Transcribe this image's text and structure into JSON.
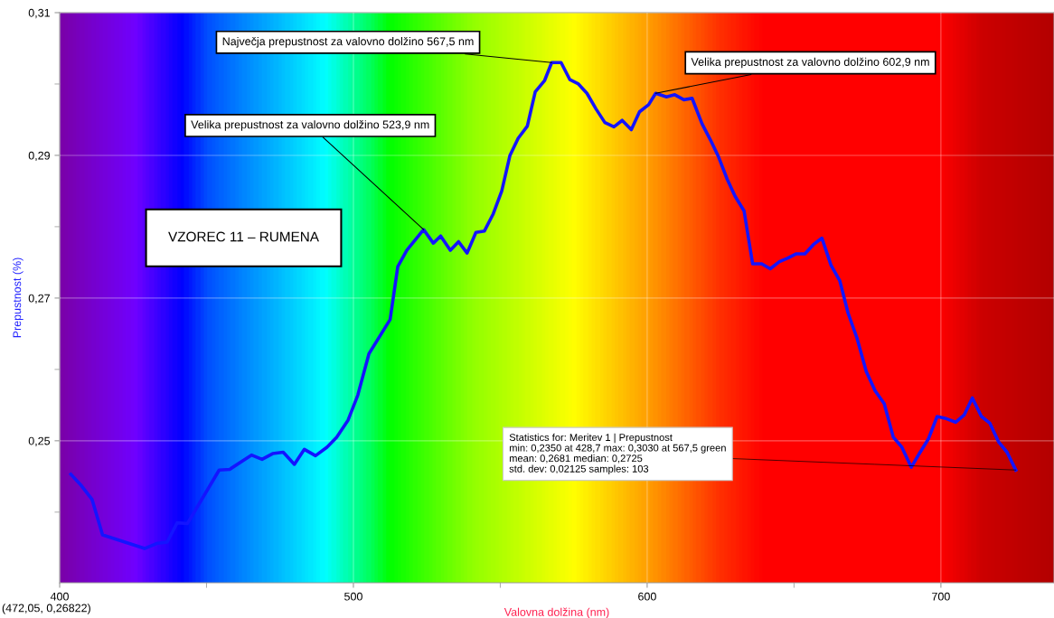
{
  "chart_data": {
    "type": "line",
    "xlabel": "Valovna dolžina (nm)",
    "ylabel": "Prepustnost (%)",
    "x": [
      403.8,
      407.4,
      411.0,
      414.6,
      428.9,
      433.0,
      436.6,
      440.0,
      443.5,
      454.3,
      457.9,
      465.3,
      468.9,
      472.5,
      476.1,
      479.9,
      483.3,
      487.1,
      491.0,
      494.3,
      498.2,
      501.5,
      505.3,
      512.5,
      515.1,
      518.2,
      523.9,
      527.2,
      529.7,
      533.0,
      535.8,
      538.7,
      541.7,
      544.6,
      547.6,
      550.5,
      553.3,
      556.1,
      559.2,
      561.9,
      565.1,
      567.5,
      570.7,
      573.7,
      576.6,
      579.5,
      582.6,
      585.6,
      588.7,
      591.5,
      594.6,
      597.4,
      600.5,
      602.9,
      606.6,
      609.4,
      612.5,
      615.3,
      618.7,
      621.5,
      624.3,
      627.2,
      629.9,
      633.0,
      635.9,
      639.0,
      641.9,
      645.0,
      647.9,
      650.8,
      653.7,
      656.6,
      659.5,
      662.6,
      665.6,
      668.4,
      671.5,
      674.6,
      677.6,
      680.7,
      683.8,
      686.7,
      689.9,
      692.8,
      695.8,
      698.7,
      701.8,
      705.0,
      707.9,
      710.7,
      713.8,
      716.6,
      719.7,
      722.5,
      725.5
    ],
    "series": [
      {
        "color": "#1414ff",
        "values": [
          0.2453,
          0.2437,
          0.2418,
          0.2368,
          0.2349,
          0.2356,
          0.2358,
          0.2385,
          0.2384,
          0.2459,
          0.246,
          0.248,
          0.2474,
          0.2482,
          0.2484,
          0.2467,
          0.2488,
          0.2479,
          0.2491,
          0.2505,
          0.2529,
          0.2564,
          0.2622,
          0.267,
          0.2744,
          0.2767,
          0.2796,
          0.2777,
          0.2787,
          0.2767,
          0.2779,
          0.2763,
          0.2792,
          0.2794,
          0.2818,
          0.285,
          0.29,
          0.2924,
          0.2941,
          0.2989,
          0.3005,
          0.303,
          0.303,
          0.3006,
          0.3,
          0.2987,
          0.2965,
          0.2946,
          0.294,
          0.2949,
          0.2936,
          0.2961,
          0.2971,
          0.2987,
          0.2982,
          0.2985,
          0.2978,
          0.298,
          0.2944,
          0.2922,
          0.2898,
          0.2867,
          0.2843,
          0.2822,
          0.2748,
          0.2748,
          0.2741,
          0.2751,
          0.2756,
          0.2762,
          0.2762,
          0.2775,
          0.2784,
          0.2746,
          0.2724,
          0.2679,
          0.2643,
          0.2597,
          0.257,
          0.2552,
          0.2505,
          0.2491,
          0.2463,
          0.2483,
          0.2503,
          0.2534,
          0.2531,
          0.2526,
          0.2536,
          0.256,
          0.2534,
          0.2525,
          0.2498,
          0.2484,
          0.2459
        ]
      }
    ],
    "xlim": [
      400,
      738.5
    ],
    "ylim": [
      0.2301,
      0.31
    ],
    "xticks": [
      400,
      {
        "value": 450,
        "label": null
      },
      500,
      {
        "value": 550,
        "label": null
      },
      600,
      {
        "value": 650,
        "label": null
      },
      700
    ],
    "yticks": [
      {
        "value": 0.24,
        "label": null
      },
      {
        "value": 0.25,
        "label": "0,25"
      },
      {
        "value": 0.26,
        "label": null
      },
      {
        "value": 0.27,
        "label": "0,27"
      },
      {
        "value": 0.28,
        "label": null
      },
      {
        "value": 0.29,
        "label": "0,29"
      },
      {
        "value": 0.3,
        "label": null
      },
      {
        "value": 0.31,
        "label": "0,31"
      }
    ],
    "grid": true,
    "marker": "none",
    "line_style": "solid",
    "annotations": [
      {
        "text": "Največja prepustnost za valovno dolžino 567,5 nm",
        "x": 567.5,
        "y": 0.303
      },
      {
        "text": "Velika prepustnost za valovno dolžino 523,9 nm",
        "x": 523.9,
        "y": 0.2796
      },
      {
        "text": "Velika prepustnost za valovno dolžino 602,9 nm",
        "x": 602.9,
        "y": 0.2987
      },
      "VZOREC 11 – RUMENA",
      {
        "text": "Statistics for: Meritev 1 | Prepustnost\nmin: 0,2350 at 428,7 max: 0,3030 at 567,5 green\nmean: 0,2681 median: 0,2725\nstd. dev: 0,02125 samples: 103",
        "x": 725.5,
        "y": 0.2459
      },
      "(472,05, 0,26822)"
    ]
  }
}
